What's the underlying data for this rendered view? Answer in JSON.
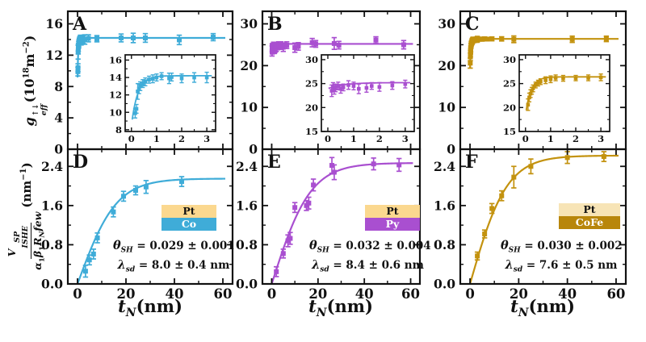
{
  "colors": {
    "co": "#3FACD8",
    "py": "#A94FD0",
    "cofe": "#C3920E",
    "pt_bar": "#FBD88F",
    "pt_bar_light": "#F7E4B6",
    "cofe_bar": "#B8860B",
    "axis": "#111111"
  },
  "figure": {
    "ylabel_top": {
      "base": "g",
      "sup": "↑↓",
      "sub": "eff",
      "open": "(10",
      "exp": "18",
      "mid": "m",
      "exp2": "−2",
      "close": ")"
    },
    "ylabel_bottom": {
      "num_base": "V",
      "num_sup": "SP",
      "num_sub": "ISHE",
      "den0": {
        "t": "α",
        "s": "1"
      },
      "den1": {
        "t": "β",
        "s": "1"
      },
      "den2": {
        "t": "R",
        "s": "N"
      },
      "den3": {
        "t": "few",
        "s": ""
      },
      "open": "(nm",
      "exp": "−1",
      "close": ")"
    },
    "xlabel": {
      "base": "t",
      "sub": "N",
      "unit": "(nm)"
    }
  },
  "chart_data": [
    {
      "id": "A",
      "type": "scatter",
      "row": 0,
      "col": 0,
      "color": "#3FACD8",
      "xlim": [
        -4,
        64
      ],
      "xticks": [
        0,
        20,
        40,
        60
      ],
      "xminor": 10,
      "ylim": [
        0,
        17.6
      ],
      "yticks": [
        0,
        4,
        8,
        12,
        16
      ],
      "yminor": 2,
      "fit": {
        "kind": "exp",
        "amp": 14.2,
        "frac": 0.4,
        "lambda": 0.25
      },
      "points": [
        [
          0.15,
          9.9,
          0.55
        ],
        [
          0.2,
          10.4,
          0.5
        ],
        [
          0.25,
          12.4,
          0.9
        ],
        [
          0.3,
          12.7,
          0.55
        ],
        [
          0.35,
          13.0,
          0.5
        ],
        [
          0.45,
          13.3,
          0.45
        ],
        [
          0.55,
          13.5,
          0.45
        ],
        [
          0.7,
          13.75,
          0.4
        ],
        [
          0.85,
          13.85,
          0.45
        ],
        [
          1.0,
          14.0,
          0.4
        ],
        [
          1.2,
          14.15,
          0.4
        ],
        [
          1.5,
          13.9,
          0.6
        ],
        [
          1.6,
          14.05,
          0.45
        ],
        [
          2.0,
          13.9,
          0.5
        ],
        [
          2.5,
          14.0,
          0.55
        ],
        [
          3.0,
          14.0,
          0.6
        ],
        [
          4.5,
          14.15,
          0.45
        ],
        [
          8,
          14.1,
          0.4
        ],
        [
          18,
          14.2,
          0.5
        ],
        [
          23,
          14.2,
          0.6
        ],
        [
          28,
          14.2,
          0.55
        ],
        [
          42,
          13.95,
          0.6
        ],
        [
          56,
          14.3,
          0.45
        ]
      ],
      "inset": {
        "xlim": [
          -0.25,
          3.35
        ],
        "xticks": [
          0,
          1,
          2,
          3
        ],
        "xminor": 0.5,
        "ylim": [
          7.8,
          16.6
        ],
        "yticks": [
          8,
          10,
          12,
          14,
          16
        ],
        "yminor": 1,
        "max_x": 3.2
      }
    },
    {
      "id": "B",
      "type": "scatter",
      "row": 0,
      "col": 1,
      "color": "#A94FD0",
      "xlim": [
        -4,
        64
      ],
      "xticks": [
        0,
        20,
        40,
        60
      ],
      "xminor": 10,
      "ylim": [
        0,
        33
      ],
      "yticks": [
        0,
        10,
        20,
        30
      ],
      "yminor": 5,
      "fit": {
        "kind": "exp",
        "amp": 25.2,
        "frac": 0.05,
        "lambda": 0.6
      },
      "points": [
        [
          0.15,
          23.5,
          1.2
        ],
        [
          0.2,
          24.3,
          0.9
        ],
        [
          0.25,
          23.8,
          1.0
        ],
        [
          0.3,
          24.1,
          0.8
        ],
        [
          0.4,
          24.5,
          0.8
        ],
        [
          0.5,
          23.9,
          0.9
        ],
        [
          0.6,
          24.2,
          0.7
        ],
        [
          0.8,
          24.7,
          0.9
        ],
        [
          1.0,
          24.5,
          0.8
        ],
        [
          1.2,
          23.9,
          1.0
        ],
        [
          1.5,
          24.1,
          0.9
        ],
        [
          1.7,
          24.5,
          0.7
        ],
        [
          2.0,
          24.3,
          0.9
        ],
        [
          2.5,
          24.6,
          0.8
        ],
        [
          3.0,
          24.9,
          0.8
        ],
        [
          4,
          24.8,
          0.9
        ],
        [
          5,
          24.4,
          1.0
        ],
        [
          6.5,
          24.9,
          0.8
        ],
        [
          10,
          24.3,
          1.1
        ],
        [
          11.5,
          24.6,
          0.9
        ],
        [
          17.5,
          25.5,
          1.0
        ],
        [
          19,
          25.2,
          0.8
        ],
        [
          27,
          25.3,
          1.4
        ],
        [
          29,
          24.9,
          0.9
        ],
        [
          45,
          26.1,
          0.8
        ],
        [
          57,
          25.0,
          1.0
        ]
      ],
      "inset": {
        "xlim": [
          -0.25,
          3.35
        ],
        "xticks": [
          0,
          1,
          2,
          3
        ],
        "xminor": 0.5,
        "ylim": [
          15,
          31
        ],
        "yticks": [
          15,
          20,
          25,
          30
        ],
        "yminor": 2.5,
        "max_x": 3.2
      }
    },
    {
      "id": "C",
      "type": "scatter",
      "row": 0,
      "col": 2,
      "color": "#C3920E",
      "xlim": [
        -4,
        64
      ],
      "xticks": [
        0,
        20,
        40,
        60
      ],
      "xminor": 10,
      "ylim": [
        0,
        33
      ],
      "yticks": [
        0,
        10,
        20,
        30
      ],
      "yminor": 5,
      "fit": {
        "kind": "exp",
        "amp": 26.4,
        "frac": 0.3,
        "lambda": 0.22
      },
      "points": [
        [
          0.1,
          20.6,
          1.2
        ],
        [
          0.15,
          22.1,
          0.9
        ],
        [
          0.2,
          22.9,
          0.8
        ],
        [
          0.25,
          23.5,
          0.7
        ],
        [
          0.3,
          24.0,
          0.7
        ],
        [
          0.4,
          24.7,
          0.6
        ],
        [
          0.5,
          25.1,
          0.6
        ],
        [
          0.6,
          25.4,
          0.6
        ],
        [
          0.8,
          25.7,
          0.7
        ],
        [
          1.0,
          25.9,
          0.7
        ],
        [
          1.2,
          26.2,
          0.6
        ],
        [
          1.5,
          26.1,
          0.6
        ],
        [
          2.0,
          26.15,
          0.55
        ],
        [
          2.5,
          26.2,
          0.6
        ],
        [
          3.0,
          26.3,
          0.7
        ],
        [
          4,
          26.35,
          0.45
        ],
        [
          5,
          26.3,
          0.4
        ],
        [
          6,
          26.4,
          0.45
        ],
        [
          7,
          26.35,
          0.4
        ],
        [
          9,
          26.4,
          0.45
        ],
        [
          13,
          26.4,
          0.5
        ],
        [
          18,
          26.3,
          0.8
        ],
        [
          42,
          26.3,
          0.75
        ],
        [
          56,
          26.4,
          0.65
        ]
      ],
      "inset": {
        "xlim": [
          -0.25,
          3.35
        ],
        "xticks": [
          0,
          1,
          2,
          3
        ],
        "xminor": 0.5,
        "ylim": [
          15,
          31
        ],
        "yticks": [
          15,
          20,
          25,
          30
        ],
        "yminor": 2.5,
        "max_x": 3.2
      }
    },
    {
      "id": "D",
      "type": "scatter",
      "row": 1,
      "col": 0,
      "color": "#3FACD8",
      "xlim": [
        -4,
        64
      ],
      "xticks": [
        0,
        20,
        40,
        60
      ],
      "xminor": 10,
      "ylim": [
        0,
        2.75
      ],
      "yticks": [
        0,
        0.8,
        1.6,
        2.4
      ],
      "ytick_labels": [
        "0.0",
        "0.8",
        "1.6",
        "2.4"
      ],
      "yminor": 0.4,
      "fit": {
        "kind": "tanh",
        "amp": 2.15,
        "lambda": 8.0
      },
      "points": [
        [
          3.3,
          0.26,
          0.12
        ],
        [
          4.9,
          0.49,
          0.1
        ],
        [
          6.6,
          0.61,
          0.1
        ],
        [
          8.2,
          0.94,
          0.1
        ],
        [
          14.8,
          1.47,
          0.1
        ],
        [
          19,
          1.79,
          0.1
        ],
        [
          24,
          1.91,
          0.09
        ],
        [
          28.3,
          1.98,
          0.13
        ],
        [
          43,
          2.09,
          0.1
        ]
      ],
      "legend": {
        "top": "Pt",
        "bottom": "Co",
        "top_color": "#FBD88F",
        "bottom_color": "#3FACD8"
      },
      "theta": {
        "sym": "θ",
        "sub": "SH",
        "val": " = 0.029 ± 0.001"
      },
      "lam": {
        "sym": "λ",
        "sub": "sd",
        "val": " = 8.0 ± 0.4 nm"
      }
    },
    {
      "id": "E",
      "type": "scatter",
      "row": 1,
      "col": 1,
      "color": "#A94FD0",
      "xlim": [
        -4,
        64
      ],
      "xticks": [
        0,
        20,
        40,
        60
      ],
      "xminor": 10,
      "ylim": [
        0,
        2.75
      ],
      "yticks": [
        0,
        0.8,
        1.6,
        2.4
      ],
      "ytick_labels": [
        "0.0",
        "0.8",
        "1.6",
        "2.4"
      ],
      "yminor": 0.4,
      "fit": {
        "kind": "tanh",
        "amp": 2.47,
        "lambda": 8.4
      },
      "points": [
        [
          2,
          0.25,
          0.1
        ],
        [
          5,
          0.62,
          0.09
        ],
        [
          7,
          0.88,
          0.12
        ],
        [
          8,
          0.93,
          0.12
        ],
        [
          10,
          1.56,
          0.1
        ],
        [
          15,
          1.6,
          0.1
        ],
        [
          16,
          1.65,
          0.12
        ],
        [
          18,
          2.02,
          0.12
        ],
        [
          26,
          2.42,
          0.16
        ],
        [
          27,
          2.28,
          0.15
        ],
        [
          44,
          2.45,
          0.12
        ],
        [
          55,
          2.43,
          0.13
        ]
      ],
      "legend": {
        "top": "Pt",
        "bottom": "Py",
        "top_color": "#FBD88F",
        "bottom_color": "#A94FD0"
      },
      "theta": {
        "sym": "θ",
        "sub": "SH",
        "val": " = 0.032 ± 0.004"
      },
      "lam": {
        "sym": "λ",
        "sub": "sd",
        "val": " = 8.4 ± 0.6 nm"
      }
    },
    {
      "id": "F",
      "type": "scatter",
      "row": 1,
      "col": 2,
      "color": "#C3920E",
      "xlim": [
        -4,
        64
      ],
      "xticks": [
        0,
        20,
        40,
        60
      ],
      "xminor": 10,
      "ylim": [
        0,
        2.75
      ],
      "yticks": [
        0,
        0.8,
        1.6,
        2.4
      ],
      "ytick_labels": [
        "0.0",
        "0.8",
        "1.6",
        "2.4"
      ],
      "yminor": 0.4,
      "fit": {
        "kind": "tanh",
        "amp": 2.62,
        "lambda": 7.6
      },
      "points": [
        [
          3,
          0.57,
          0.08
        ],
        [
          6,
          1.02,
          0.08
        ],
        [
          9,
          1.54,
          0.1
        ],
        [
          13,
          1.8,
          0.1
        ],
        [
          18,
          2.18,
          0.22
        ],
        [
          25,
          2.4,
          0.15
        ],
        [
          40,
          2.58,
          0.12
        ],
        [
          55,
          2.6,
          0.1
        ]
      ],
      "legend": {
        "top": "Pt",
        "bottom": "CoFe",
        "top_color": "#F7E4B6",
        "bottom_color": "#B8860B"
      },
      "theta": {
        "sym": "θ",
        "sub": "SH",
        "val": " = 0.030 ± 0.002"
      },
      "lam": {
        "sym": "λ",
        "sub": "sd",
        "val": " = 7.6 ± 0.5 nm"
      }
    }
  ]
}
